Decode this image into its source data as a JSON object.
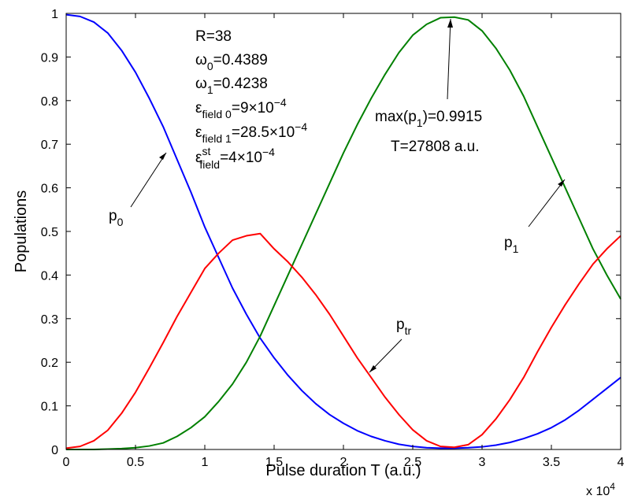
{
  "chart_data": {
    "type": "line",
    "xlabel": "Pulse duration T (a.u.)",
    "ylabel": "Populations",
    "x_multiplier": "x 10",
    "x_multiplier_exp": "4",
    "xlim": [
      0,
      4
    ],
    "ylim": [
      0,
      1
    ],
    "xticks": [
      "0",
      "0.5",
      "1",
      "1.5",
      "2",
      "2.5",
      "3",
      "3.5",
      "4"
    ],
    "yticks": [
      "0",
      "0.1",
      "0.2",
      "0.3",
      "0.4",
      "0.5",
      "0.6",
      "0.7",
      "0.8",
      "0.9",
      "1"
    ],
    "grid": false,
    "legend": "none",
    "series": [
      {
        "name": "p0",
        "color": "#0000ff",
        "x": [
          0,
          0.1,
          0.2,
          0.3,
          0.4,
          0.5,
          0.6,
          0.7,
          0.8,
          0.9,
          1.0,
          1.1,
          1.2,
          1.3,
          1.4,
          1.5,
          1.6,
          1.7,
          1.8,
          1.9,
          2.0,
          2.1,
          2.2,
          2.3,
          2.4,
          2.5,
          2.6,
          2.7,
          2.8,
          2.9,
          3.0,
          3.1,
          3.2,
          3.3,
          3.4,
          3.5,
          3.6,
          3.7,
          3.8,
          3.9,
          4.0
        ],
        "y": [
          0.997,
          0.993,
          0.98,
          0.955,
          0.915,
          0.865,
          0.805,
          0.74,
          0.665,
          0.59,
          0.51,
          0.44,
          0.37,
          0.31,
          0.255,
          0.21,
          0.17,
          0.135,
          0.105,
          0.08,
          0.06,
          0.043,
          0.03,
          0.02,
          0.012,
          0.007,
          0.004,
          0.003,
          0.003,
          0.004,
          0.006,
          0.01,
          0.016,
          0.025,
          0.036,
          0.05,
          0.068,
          0.09,
          0.115,
          0.14,
          0.165
        ]
      },
      {
        "name": "p1",
        "color": "#008000",
        "x": [
          0,
          0.1,
          0.2,
          0.3,
          0.4,
          0.5,
          0.6,
          0.7,
          0.8,
          0.9,
          1.0,
          1.1,
          1.2,
          1.3,
          1.4,
          1.5,
          1.6,
          1.7,
          1.8,
          1.9,
          2.0,
          2.1,
          2.2,
          2.3,
          2.4,
          2.5,
          2.6,
          2.7,
          2.8,
          2.9,
          3.0,
          3.1,
          3.2,
          3.3,
          3.4,
          3.5,
          3.6,
          3.7,
          3.8,
          3.9,
          4.0
        ],
        "y": [
          0,
          0,
          0,
          0.001,
          0.002,
          0.004,
          0.008,
          0.015,
          0.03,
          0.05,
          0.075,
          0.11,
          0.15,
          0.2,
          0.26,
          0.33,
          0.4,
          0.47,
          0.54,
          0.61,
          0.68,
          0.745,
          0.805,
          0.86,
          0.91,
          0.95,
          0.975,
          0.99,
          0.9915,
          0.985,
          0.96,
          0.92,
          0.87,
          0.81,
          0.74,
          0.67,
          0.6,
          0.53,
          0.46,
          0.4,
          0.345
        ]
      },
      {
        "name": "ptr",
        "color": "#ff0000",
        "x": [
          0,
          0.1,
          0.2,
          0.3,
          0.4,
          0.5,
          0.6,
          0.7,
          0.8,
          0.9,
          1.0,
          1.1,
          1.2,
          1.3,
          1.4,
          1.5,
          1.6,
          1.7,
          1.8,
          1.9,
          2.0,
          2.1,
          2.2,
          2.3,
          2.4,
          2.5,
          2.6,
          2.7,
          2.8,
          2.9,
          3.0,
          3.1,
          3.2,
          3.3,
          3.4,
          3.5,
          3.6,
          3.7,
          3.8,
          3.9,
          4.0
        ],
        "y": [
          0.003,
          0.007,
          0.02,
          0.044,
          0.083,
          0.131,
          0.187,
          0.245,
          0.305,
          0.36,
          0.415,
          0.45,
          0.48,
          0.49,
          0.495,
          0.46,
          0.43,
          0.395,
          0.355,
          0.31,
          0.26,
          0.21,
          0.165,
          0.12,
          0.08,
          0.045,
          0.02,
          0.007,
          0.005,
          0.011,
          0.034,
          0.07,
          0.114,
          0.165,
          0.224,
          0.28,
          0.332,
          0.38,
          0.425,
          0.46,
          0.49
        ]
      }
    ],
    "annotations": {
      "p0_label": "p",
      "p0_sub": "0",
      "p1_label": "p",
      "p1_sub": "1",
      "ptr_label": "p",
      "ptr_sub": "tr",
      "max_label_a": "max(p",
      "max_label_sub": "1",
      "max_label_b": ")=0.9915",
      "T_label": "T=27808 a.u.",
      "params": {
        "R": "R=38",
        "w0_sym": "ω",
        "w0_sub": "0",
        "w0_val": "=0.4389",
        "w1_sym": "ω",
        "w1_sub": "1",
        "w1_val": "=0.4238",
        "e0_sym": "ε",
        "e0_sub": "field 0",
        "e0_val": "=9×10",
        "e0_exp": "−4",
        "e1_sym": "ε",
        "e1_sub": "field 1",
        "e1_val": "=28.5×10",
        "e1_exp": "−4",
        "est_sym": "ε",
        "est_sup": "st",
        "est_sub": "field",
        "est_val": "=4×10",
        "est_exp": "−4"
      }
    }
  }
}
